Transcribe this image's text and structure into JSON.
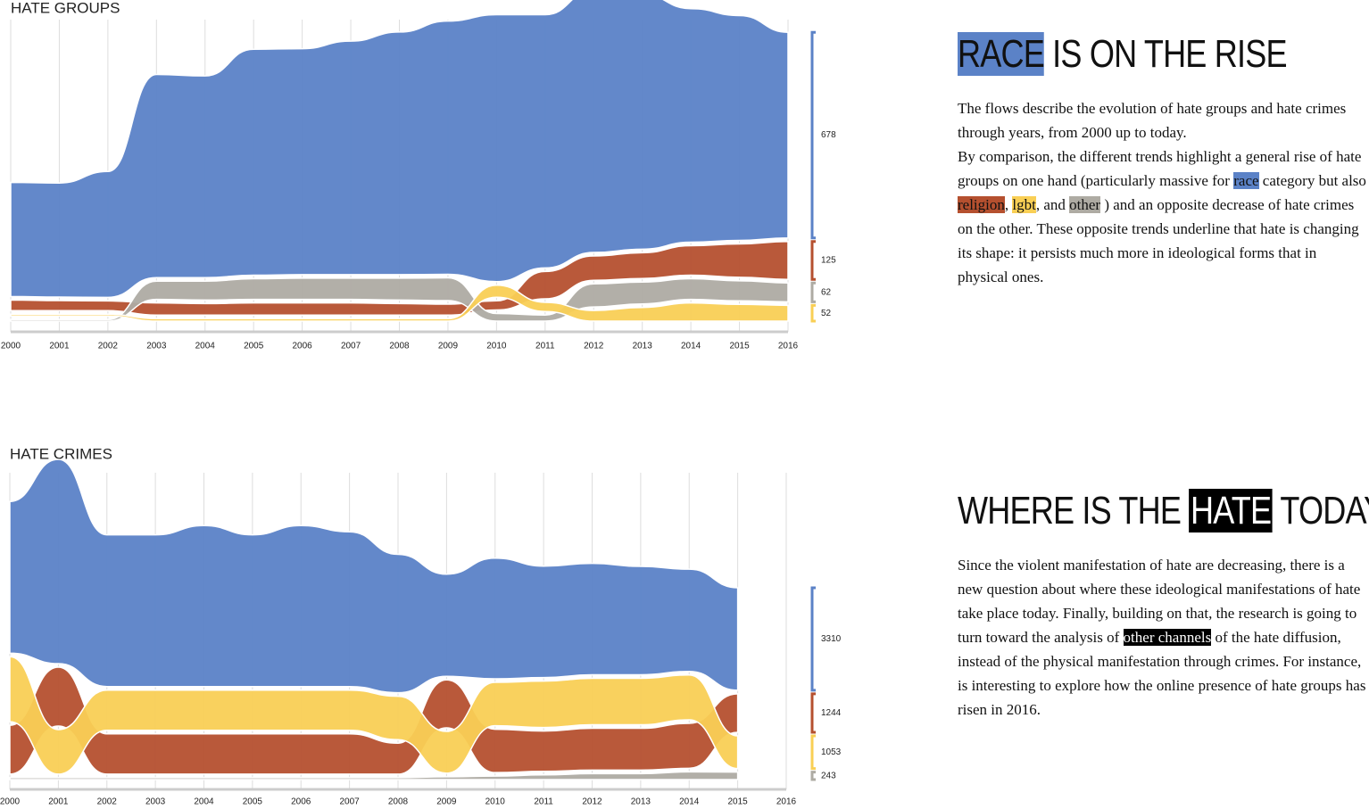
{
  "chart_data": [
    {
      "type": "streamgraph",
      "title": "HATE GROUPS",
      "x": [
        2000,
        2001,
        2002,
        2003,
        2004,
        2005,
        2006,
        2007,
        2008,
        2009,
        2010,
        2011,
        2012,
        2013,
        2014,
        2015,
        2016
      ],
      "series": [
        {
          "color": "#5b82c7",
          "values": [
            376,
            376,
            415,
            670,
            665,
            745,
            745,
            770,
            800,
            835,
            880,
            835,
            865,
            840,
            770,
            741,
            678
          ]
        },
        {
          "color": "#b5502f",
          "values": [
            35,
            33,
            32,
            40,
            38,
            40,
            40,
            40,
            38,
            36,
            30,
            90,
            80,
            85,
            97,
            110,
            125
          ]
        },
        {
          "color": "#aeaba3",
          "values": [
            5,
            5,
            5,
            60,
            62,
            68,
            70,
            70,
            72,
            75,
            25,
            20,
            76,
            72,
            68,
            66,
            62
          ]
        },
        {
          "color": "#f9cf55",
          "values": [
            6,
            6,
            6,
            8,
            8,
            8,
            8,
            8,
            8,
            8,
            40,
            30,
            35,
            45,
            60,
            55,
            52
          ]
        }
      ]
    },
    {
      "type": "streamgraph",
      "title": "HATE CRIMES",
      "x": [
        2000,
        2001,
        2002,
        2003,
        2004,
        2005,
        2006,
        2007,
        2008,
        2009,
        2010,
        2011,
        2012,
        2013,
        2014,
        2015,
        2016
      ],
      "series": [
        {
          "color": "#5b82c7",
          "values": [
            4900,
            6600,
            4900,
            4900,
            5200,
            4900,
            5200,
            5000,
            4470,
            3300,
            3900,
            3600,
            3600,
            3500,
            3300,
            3310,
            null
          ]
        },
        {
          "color": "#b5502f",
          "values": [
            1580,
            1900,
            1300,
            1300,
            1300,
            1300,
            1300,
            1300,
            1000,
            1550,
            1400,
            1300,
            1350,
            1350,
            1450,
            1244,
            null
          ]
        },
        {
          "color": "#f9cf55",
          "values": [
            2100,
            1440,
            1300,
            1300,
            1300,
            1300,
            1300,
            1300,
            1400,
            1350,
            1400,
            1500,
            1500,
            1500,
            1450,
            1053,
            null
          ]
        },
        {
          "color": "#aeaba3",
          "values": [
            60,
            60,
            60,
            60,
            60,
            60,
            60,
            60,
            60,
            90,
            110,
            150,
            190,
            190,
            250,
            243,
            null
          ]
        }
      ]
    }
  ],
  "articles": [
    {
      "heading": [
        "RACE",
        " IS ON THE RISE"
      ],
      "paragraph": [
        "The flows describe the evolution of hate groups and hate crimes through years, from 2000 up to today.",
        "By comparison, the different trends highlight a general rise of hate groups on one hand (particularly massive for ",
        "race",
        " category but also ",
        "religion",
        ", ",
        "lgbt",
        ", and ",
        "other",
        " ) and an opposite decrease of hate crimes on the other. These opposite trends underline that hate is changing its shape: it persists much more in ideological forms that in physical ones."
      ]
    },
    {
      "heading": [
        "WHERE IS THE ",
        "HATE",
        " TODAY?"
      ],
      "paragraph": [
        "Since the violent manifestation of hate are decreasing, there is a new question about where these ideological manifestations of hate take place today. Finally, building on that, the research is going to turn toward the analysis of ",
        "other channels",
        " of the hate diffusion, instead of the physical manifestation through crimes. For instance, is interesting to explore how the online presence of hate groups has risen in 2016."
      ]
    }
  ]
}
